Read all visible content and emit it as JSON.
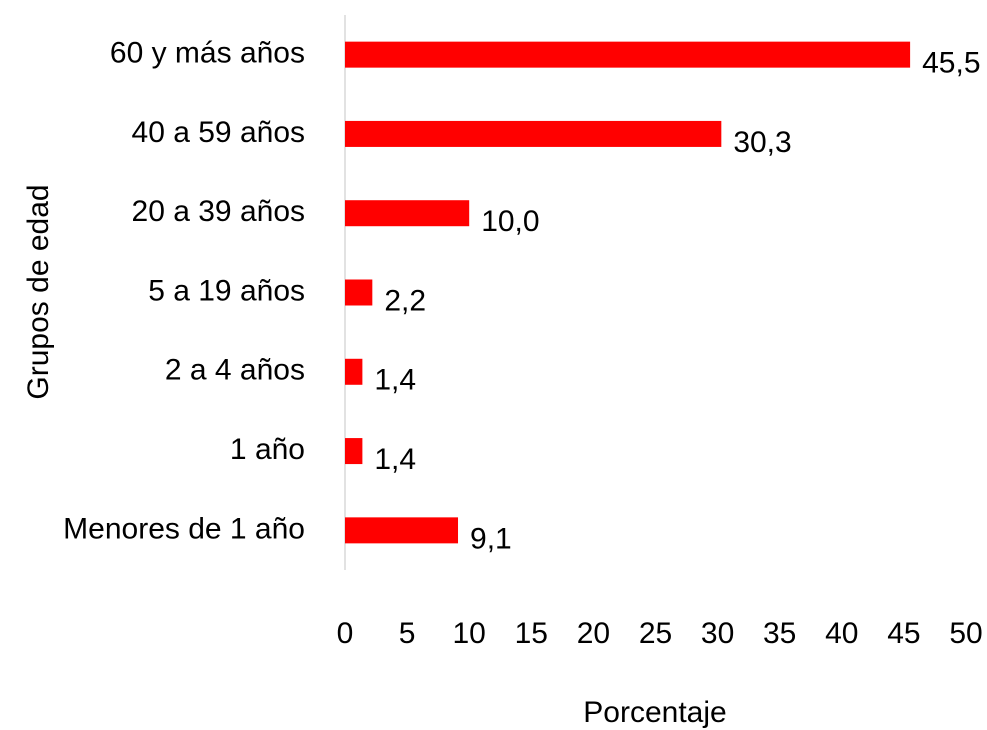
{
  "chart_data": {
    "type": "bar",
    "orientation": "horizontal",
    "x_label": "Porcentaje",
    "y_label": "Grupos de edad",
    "categories": [
      "60 y más años",
      "40 a 59 años",
      "20 a 39 años",
      "5 a 19 años",
      "2 a 4 años",
      "1 año",
      "Menores de 1 año"
    ],
    "values": [
      45.5,
      30.3,
      10.0,
      2.2,
      1.4,
      1.4,
      9.1
    ],
    "value_labels": [
      "45,5",
      "30,3",
      "10,0",
      "2,2",
      "1,4",
      "1,4",
      "9,1"
    ],
    "color": "#ff0000",
    "xlim": [
      0,
      50
    ],
    "xticks": [
      0,
      5,
      10,
      15,
      20,
      25,
      30,
      35,
      40,
      45,
      50
    ],
    "grid": false
  }
}
